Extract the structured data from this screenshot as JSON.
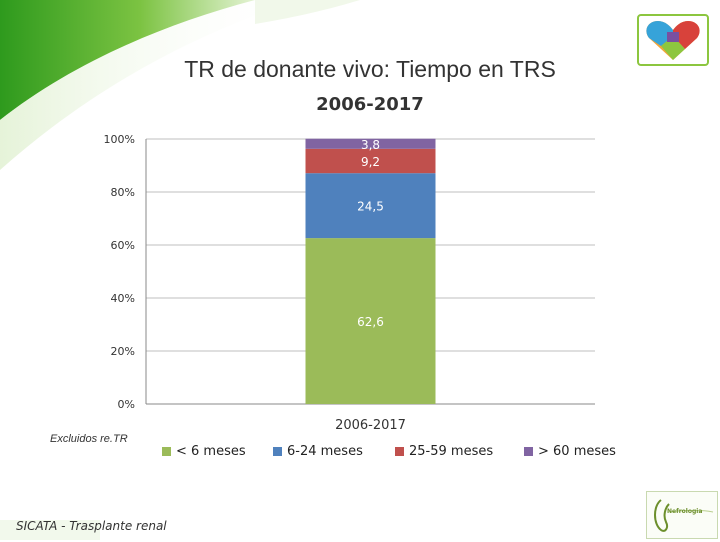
{
  "slide": {
    "title": "TR de donante vivo: Tiempo en TRS",
    "subtitle": "2006-2017",
    "note": "Excluidos re.TR",
    "footer": "SICATA - Trasplante renal",
    "logo_text": "Nefrologia"
  },
  "chart_data": {
    "type": "bar",
    "stacked": true,
    "percent": true,
    "categories": [
      "2006-2017"
    ],
    "series": [
      {
        "name": "< 6 meses",
        "values": [
          62.6
        ],
        "color": "#9bbb59",
        "label": "62,6"
      },
      {
        "name": "6-24 meses",
        "values": [
          24.5
        ],
        "color": "#4f81bd",
        "label": "24,5"
      },
      {
        "name": "25-59 meses",
        "values": [
          9.2
        ],
        "color": "#c0504d",
        "label": "9,2"
      },
      {
        "name": "> 60 meses",
        "values": [
          3.8
        ],
        "color": "#8064a2",
        "label": "3,8"
      }
    ],
    "yticks": [
      "0%",
      "20%",
      "40%",
      "60%",
      "80%",
      "100%"
    ],
    "ylim": [
      0,
      100
    ],
    "grid": true,
    "legend_position": "bottom"
  }
}
